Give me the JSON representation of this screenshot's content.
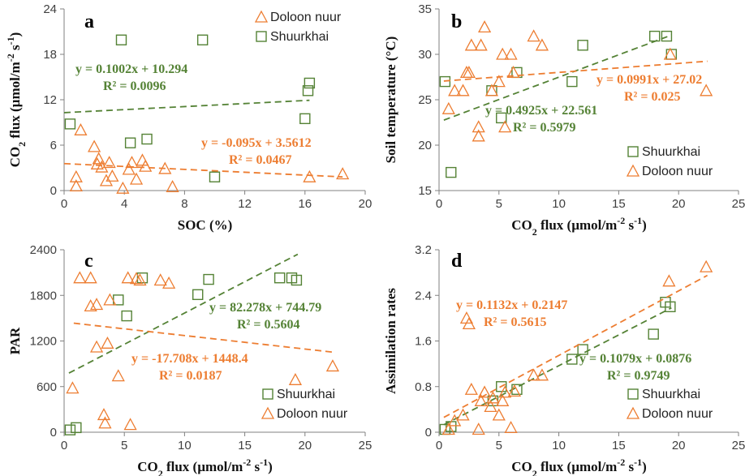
{
  "colors": {
    "shuurkhai": "#548235",
    "doloon": "#ED7D31",
    "axis": "#808080",
    "text": "#111111"
  },
  "chart_data": [
    {
      "type": "scatter",
      "panel": "a",
      "xlabel": "SOC (%)",
      "ylabel": "CO",
      "ylabel_sub": "2",
      "ylabel_rest": " flux (µmol/m",
      "ylabel_sup": "-2",
      "ylabel_rest2": " s",
      "ylabel_sup2": "-1",
      "ylabel_end": ")",
      "xlim": [
        0,
        20
      ],
      "ylim": [
        0,
        24
      ],
      "xticks": [
        "0",
        "4",
        "8",
        "12",
        "16",
        "20"
      ],
      "yticks": [
        "0",
        "6",
        "12",
        "18",
        "24"
      ],
      "legend": [
        "Doloon nuur",
        "Shuurkhai"
      ],
      "series": [
        {
          "name": "Shuurkhai",
          "marker": "square",
          "points": [
            [
              0.4,
              8.8
            ],
            [
              3.8,
              19.9
            ],
            [
              4.4,
              6.3
            ],
            [
              5.5,
              6.8
            ],
            [
              9.2,
              19.9
            ],
            [
              10.0,
              1.8
            ],
            [
              16.0,
              9.5
            ],
            [
              16.2,
              13.2
            ],
            [
              16.3,
              14.2
            ]
          ],
          "trend": {
            "slope": 0.1002,
            "intercept": 10.294,
            "x0": 0,
            "x1": 16.3
          },
          "equation": "y = 0.1002x + 10.294",
          "r2": "R² = 0.0096"
        },
        {
          "name": "Doloon nuur",
          "marker": "triangle",
          "points": [
            [
              0.8,
              0.6
            ],
            [
              0.8,
              1.8
            ],
            [
              1.1,
              8.0
            ],
            [
              2.0,
              5.8
            ],
            [
              2.2,
              3.5
            ],
            [
              2.3,
              4.2
            ],
            [
              2.5,
              3.1
            ],
            [
              2.8,
              1.3
            ],
            [
              3.0,
              3.7
            ],
            [
              3.2,
              1.9
            ],
            [
              3.9,
              0.3
            ],
            [
              4.3,
              2.8
            ],
            [
              4.5,
              3.7
            ],
            [
              4.8,
              1.5
            ],
            [
              5.2,
              4.0
            ],
            [
              5.4,
              3.2
            ],
            [
              6.7,
              2.9
            ],
            [
              7.2,
              0.5
            ],
            [
              16.3,
              1.8
            ],
            [
              18.5,
              2.2
            ]
          ],
          "trend": {
            "slope": -0.095,
            "intercept": 3.5612,
            "x0": 0,
            "x1": 18.5
          },
          "equation": "y = -0.095x + 3.5612",
          "r2": "R² = 0.0467"
        }
      ]
    },
    {
      "type": "scatter",
      "panel": "b",
      "xlabel": "CO",
      "xlabel_sub": "2",
      "xlabel_rest": " flux (µmol/m",
      "xlabel_sup": "-2",
      "xlabel_rest2": " s",
      "xlabel_sup2": "-1",
      "xlabel_end": ")",
      "ylabel": "Soil temperature (°C)",
      "xlim": [
        0,
        25
      ],
      "ylim": [
        15,
        35
      ],
      "xticks": [
        "0",
        "5",
        "10",
        "15",
        "20",
        "25"
      ],
      "yticks": [
        "15",
        "20",
        "25",
        "30",
        "35"
      ],
      "legend": [
        "Shuurkhai",
        "Doloon nuur"
      ],
      "series": [
        {
          "name": "Shuurkhai",
          "marker": "square",
          "points": [
            [
              0.5,
              27.0
            ],
            [
              1.0,
              17.0
            ],
            [
              4.4,
              26.0
            ],
            [
              5.2,
              23.0
            ],
            [
              6.5,
              28.0
            ],
            [
              11.1,
              27.0
            ],
            [
              12.0,
              31.0
            ],
            [
              18.0,
              32.0
            ],
            [
              19.0,
              32.0
            ],
            [
              19.4,
              30.0
            ]
          ],
          "trend": {
            "slope": 0.4925,
            "intercept": 22.561,
            "x0": 0.4,
            "x1": 19.4
          },
          "equation": "y = 0.4925x + 22.561",
          "r2": "R² = 0.5979"
        },
        {
          "name": "Doloon nuur",
          "marker": "triangle",
          "points": [
            [
              0.8,
              24.0
            ],
            [
              1.3,
              26.0
            ],
            [
              2.0,
              26.0
            ],
            [
              2.3,
              28.0
            ],
            [
              2.5,
              28.0
            ],
            [
              2.7,
              31.0
            ],
            [
              3.3,
              22.0
            ],
            [
              3.3,
              21.0
            ],
            [
              3.5,
              31.0
            ],
            [
              3.8,
              33.0
            ],
            [
              4.4,
              26.0
            ],
            [
              5.0,
              27.0
            ],
            [
              5.3,
              30.0
            ],
            [
              5.5,
              22.0
            ],
            [
              6.0,
              30.0
            ],
            [
              6.2,
              28.0
            ],
            [
              7.9,
              32.0
            ],
            [
              8.6,
              31.0
            ],
            [
              19.3,
              30.0
            ],
            [
              22.3,
              26.0
            ]
          ],
          "trend": {
            "slope": 0.0991,
            "intercept": 27.02,
            "x0": 0.4,
            "x1": 22.4
          },
          "equation": "y = 0.0991x + 27.02",
          "r2": "R² = 0.025"
        }
      ]
    },
    {
      "type": "scatter",
      "panel": "c",
      "xlabel": "CO",
      "xlabel_sub": "2",
      "xlabel_rest": " flux (µmol/m",
      "xlabel_sup": "-2",
      "xlabel_rest2": " s",
      "xlabel_sup2": "-1",
      "xlabel_end": ")",
      "ylabel": "PAR",
      "xlim": [
        0,
        25
      ],
      "ylim": [
        0,
        2400
      ],
      "xticks": [
        "0",
        "5",
        "10",
        "15",
        "20",
        "25"
      ],
      "yticks": [
        "0",
        "600",
        "1200",
        "1800",
        "2400"
      ],
      "legend": [
        "Shuurkhai",
        "Doloon nuur"
      ],
      "series": [
        {
          "name": "Shuurkhai",
          "marker": "square",
          "points": [
            [
              0.5,
              30
            ],
            [
              1.0,
              60
            ],
            [
              4.5,
              1740
            ],
            [
              5.2,
              1530
            ],
            [
              6.5,
              2030
            ],
            [
              11.1,
              1810
            ],
            [
              12.0,
              2010
            ],
            [
              17.9,
              2030
            ],
            [
              18.9,
              2030
            ],
            [
              19.3,
              2000
            ]
          ],
          "trend": {
            "slope": 82.278,
            "intercept": 744.79,
            "x0": 0.4,
            "x1": 19.4
          },
          "equation": "y = 82.278x + 744.79",
          "r2": "R² = 0.5604"
        },
        {
          "name": "Doloon nuur",
          "marker": "triangle",
          "points": [
            [
              0.7,
              580
            ],
            [
              1.3,
              2030
            ],
            [
              2.2,
              2030
            ],
            [
              2.2,
              1660
            ],
            [
              2.7,
              1680
            ],
            [
              2.7,
              1120
            ],
            [
              3.3,
              230
            ],
            [
              3.4,
              120
            ],
            [
              3.6,
              1170
            ],
            [
              3.8,
              1740
            ],
            [
              4.5,
              740
            ],
            [
              5.3,
              2030
            ],
            [
              5.5,
              100
            ],
            [
              6.0,
              2020
            ],
            [
              6.3,
              2000
            ],
            [
              8.0,
              2000
            ],
            [
              8.7,
              1960
            ],
            [
              19.2,
              690
            ],
            [
              22.3,
              870
            ]
          ],
          "trend": {
            "slope": -17.708,
            "intercept": 1448.4,
            "x0": 0.8,
            "x1": 22.4
          },
          "equation": "y = -17.708x + 1448.4",
          "r2": "R² = 0.0187"
        }
      ]
    },
    {
      "type": "scatter",
      "panel": "d",
      "xlabel": "CO",
      "xlabel_sub": "2",
      "xlabel_rest": " flux (µmol/m",
      "xlabel_sup": "-2",
      "xlabel_rest2": " s",
      "xlabel_sup2": "-1",
      "xlabel_end": ")",
      "ylabel": "Assimilation rates",
      "xlim": [
        0,
        25
      ],
      "ylim": [
        0,
        3.2
      ],
      "xticks": [
        "0",
        "5",
        "10",
        "15",
        "20",
        "25"
      ],
      "yticks": [
        "0",
        "0.8",
        "1.6",
        "2.4",
        "3.2"
      ],
      "legend": [
        "Shuurkhai",
        "Doloon nuur"
      ],
      "series": [
        {
          "name": "Shuurkhai",
          "marker": "square",
          "points": [
            [
              0.5,
              0.05
            ],
            [
              1.0,
              0.1
            ],
            [
              4.5,
              0.55
            ],
            [
              5.2,
              0.8
            ],
            [
              6.5,
              0.75
            ],
            [
              11.1,
              1.28
            ],
            [
              12.0,
              1.45
            ],
            [
              17.9,
              1.72
            ],
            [
              18.9,
              2.28
            ],
            [
              19.3,
              2.2
            ]
          ],
          "trend": {
            "slope": 0.1079,
            "intercept": 0.0876,
            "x0": 0.4,
            "x1": 19.4
          },
          "equation": "y = 0.1079x + 0.0876",
          "r2": "R² = 0.9749"
        },
        {
          "name": "Doloon nuur",
          "marker": "triangle",
          "points": [
            [
              0.8,
              0.05
            ],
            [
              1.3,
              0.2
            ],
            [
              2.0,
              0.3
            ],
            [
              2.3,
              2.0
            ],
            [
              2.5,
              1.9
            ],
            [
              2.7,
              0.75
            ],
            [
              3.3,
              0.05
            ],
            [
              3.5,
              0.55
            ],
            [
              3.8,
              0.7
            ],
            [
              4.3,
              0.45
            ],
            [
              4.5,
              0.6
            ],
            [
              5.0,
              0.3
            ],
            [
              5.3,
              0.55
            ],
            [
              5.5,
              0.7
            ],
            [
              6.0,
              0.08
            ],
            [
              6.3,
              0.72
            ],
            [
              7.9,
              1.0
            ],
            [
              8.6,
              1.0
            ],
            [
              19.2,
              2.65
            ],
            [
              22.3,
              2.9
            ]
          ],
          "trend": {
            "slope": 0.1132,
            "intercept": 0.2147,
            "x0": 0.4,
            "x1": 22.4
          },
          "equation": "y = 0.1132x + 0.2147",
          "r2": "R² = 0.5615"
        }
      ]
    }
  ]
}
